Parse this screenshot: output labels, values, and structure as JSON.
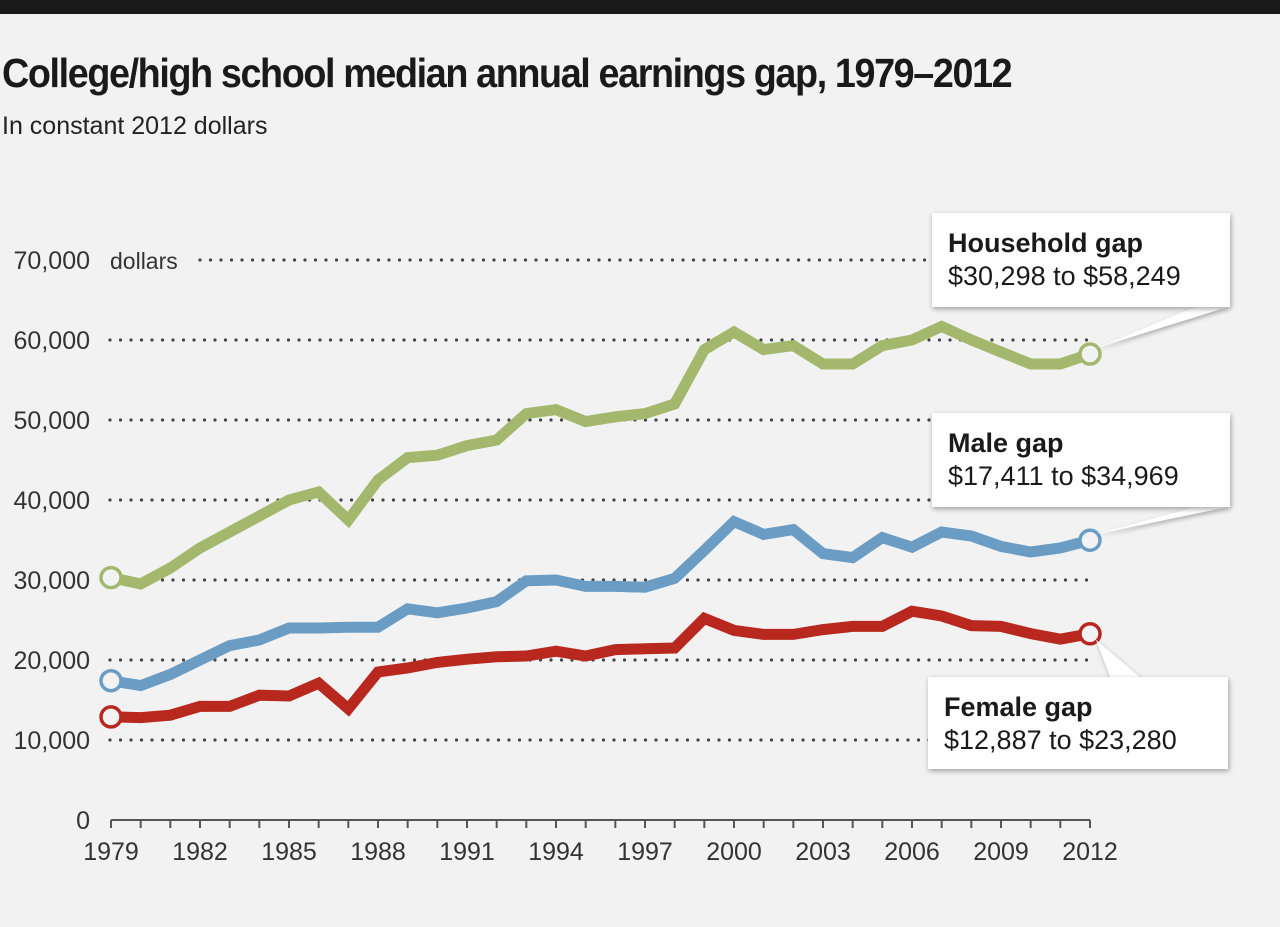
{
  "title": "College/high school median annual earnings gap, 1979–2012",
  "subtitle": "In constant 2012 dollars",
  "chart_data": {
    "type": "line",
    "title": "College/high school median annual earnings gap, 1979–2012",
    "subtitle": "In constant 2012 dollars",
    "ylabel": "dollars",
    "ylim": [
      0,
      70000
    ],
    "xlim": [
      1979,
      2012
    ],
    "yticks": [
      0,
      10000,
      20000,
      30000,
      40000,
      50000,
      60000,
      70000
    ],
    "ytick_labels": [
      "0",
      "10,000",
      "20,000",
      "30,000",
      "40,000",
      "50,000",
      "60,000",
      "70,000"
    ],
    "xticks": [
      1979,
      1982,
      1985,
      1988,
      1991,
      1994,
      1997,
      2000,
      2003,
      2006,
      2009,
      2012
    ],
    "grid": "dotted horizontal",
    "x": [
      1979,
      1980,
      1981,
      1982,
      1983,
      1984,
      1985,
      1986,
      1987,
      1988,
      1989,
      1990,
      1991,
      1992,
      1993,
      1994,
      1995,
      1996,
      1997,
      1998,
      1999,
      2000,
      2001,
      2002,
      2003,
      2004,
      2005,
      2006,
      2007,
      2008,
      2009,
      2010,
      2011,
      2012
    ],
    "series": [
      {
        "name": "Household gap",
        "color": "#a3b86c",
        "label": "$30,298 to $58,249",
        "values": [
          30298,
          29500,
          31500,
          34000,
          36000,
          38000,
          40000,
          41000,
          37500,
          42500,
          45300,
          45600,
          46800,
          47500,
          50800,
          51300,
          49800,
          50400,
          50800,
          52000,
          58800,
          61000,
          58800,
          59300,
          57000,
          57000,
          59300,
          60000,
          61700,
          60000,
          58500,
          57000,
          57000,
          58249
        ]
      },
      {
        "name": "Male gap",
        "color": "#6b9dc4",
        "label": "$17,411 to $34,969",
        "values": [
          17411,
          16800,
          18200,
          20000,
          21800,
          22500,
          24000,
          24000,
          24100,
          24100,
          26400,
          25900,
          26500,
          27300,
          29900,
          30000,
          29200,
          29200,
          29100,
          30200,
          33700,
          37300,
          35700,
          36300,
          33300,
          32800,
          35300,
          34100,
          36000,
          35500,
          34200,
          33500,
          34000,
          34969
        ]
      },
      {
        "name": "Female gap",
        "color": "#b8281e",
        "label": "$12,887 to $23,280",
        "values": [
          12887,
          12800,
          13100,
          14200,
          14200,
          15600,
          15500,
          17100,
          13900,
          18500,
          19000,
          19700,
          20100,
          20400,
          20500,
          21100,
          20500,
          21300,
          21400,
          21500,
          25200,
          23700,
          23200,
          23200,
          23800,
          24200,
          24200,
          26100,
          25500,
          24300,
          24200,
          23300,
          22600,
          23280
        ]
      }
    ]
  }
}
